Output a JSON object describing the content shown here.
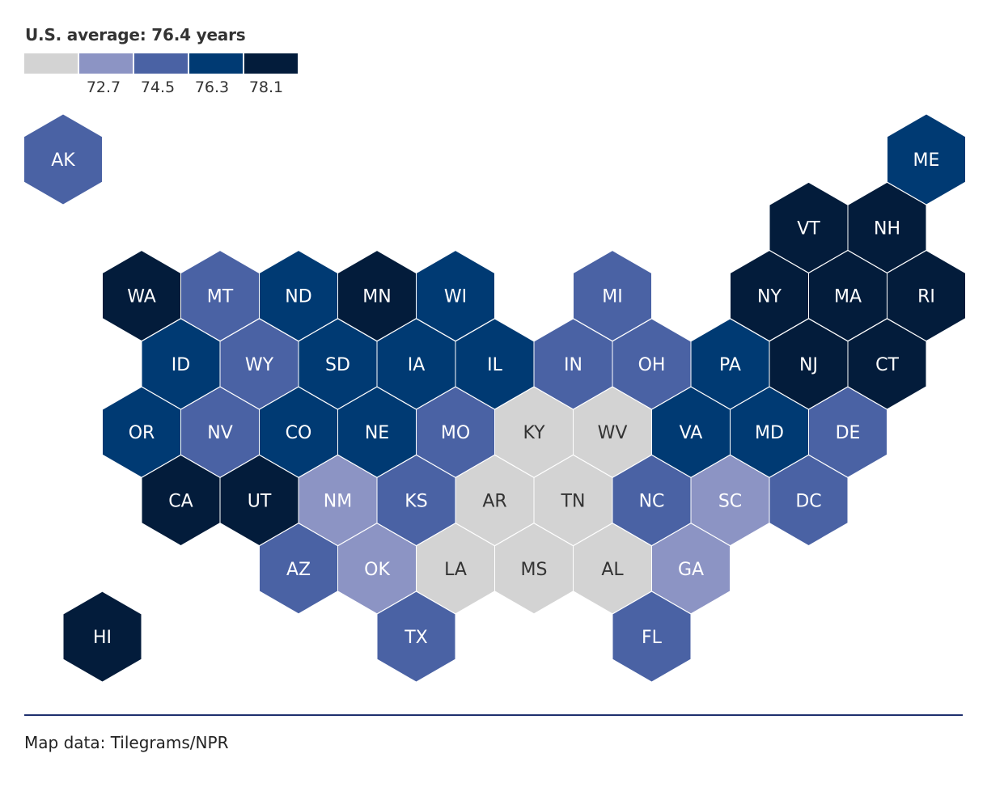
{
  "title": "U.S. average: 76.4 years",
  "legend": {
    "colors": [
      "#d3d3d3",
      "#8c94c4",
      "#4a62a4",
      "#003a73",
      "#031c3b"
    ],
    "breaks": [
      "72.7",
      "74.5",
      "76.3",
      "78.1"
    ]
  },
  "source": "Map data: Tilegrams/NPR",
  "states": [
    {
      "abbr": "AK",
      "bin": 2,
      "row": 0,
      "col": 0
    },
    {
      "abbr": "ME",
      "bin": 3,
      "row": 0,
      "col": 11
    },
    {
      "abbr": "VT",
      "bin": 4,
      "row": 1,
      "col": 9.5
    },
    {
      "abbr": "NH",
      "bin": 4,
      "row": 1,
      "col": 10.5
    },
    {
      "abbr": "WA",
      "bin": 4,
      "row": 2,
      "col": 1
    },
    {
      "abbr": "MT",
      "bin": 2,
      "row": 2,
      "col": 2
    },
    {
      "abbr": "ND",
      "bin": 3,
      "row": 2,
      "col": 3
    },
    {
      "abbr": "MN",
      "bin": 4,
      "row": 2,
      "col": 4
    },
    {
      "abbr": "WI",
      "bin": 3,
      "row": 2,
      "col": 5
    },
    {
      "abbr": "MI",
      "bin": 2,
      "row": 2,
      "col": 7
    },
    {
      "abbr": "NY",
      "bin": 4,
      "row": 2,
      "col": 9
    },
    {
      "abbr": "MA",
      "bin": 4,
      "row": 2,
      "col": 10
    },
    {
      "abbr": "RI",
      "bin": 4,
      "row": 2,
      "col": 11
    },
    {
      "abbr": "ID",
      "bin": 3,
      "row": 3,
      "col": 1.5
    },
    {
      "abbr": "WY",
      "bin": 2,
      "row": 3,
      "col": 2.5
    },
    {
      "abbr": "SD",
      "bin": 3,
      "row": 3,
      "col": 3.5
    },
    {
      "abbr": "IA",
      "bin": 3,
      "row": 3,
      "col": 4.5
    },
    {
      "abbr": "IL",
      "bin": 3,
      "row": 3,
      "col": 5.5
    },
    {
      "abbr": "IN",
      "bin": 2,
      "row": 3,
      "col": 6.5
    },
    {
      "abbr": "OH",
      "bin": 2,
      "row": 3,
      "col": 7.5
    },
    {
      "abbr": "PA",
      "bin": 3,
      "row": 3,
      "col": 8.5
    },
    {
      "abbr": "NJ",
      "bin": 4,
      "row": 3,
      "col": 9.5
    },
    {
      "abbr": "CT",
      "bin": 4,
      "row": 3,
      "col": 10.5
    },
    {
      "abbr": "OR",
      "bin": 3,
      "row": 4,
      "col": 1
    },
    {
      "abbr": "NV",
      "bin": 2,
      "row": 4,
      "col": 2
    },
    {
      "abbr": "CO",
      "bin": 3,
      "row": 4,
      "col": 3
    },
    {
      "abbr": "NE",
      "bin": 3,
      "row": 4,
      "col": 4
    },
    {
      "abbr": "MO",
      "bin": 2,
      "row": 4,
      "col": 5
    },
    {
      "abbr": "KY",
      "bin": 0,
      "row": 4,
      "col": 6
    },
    {
      "abbr": "WV",
      "bin": 0,
      "row": 4,
      "col": 7
    },
    {
      "abbr": "VA",
      "bin": 3,
      "row": 4,
      "col": 8
    },
    {
      "abbr": "MD",
      "bin": 3,
      "row": 4,
      "col": 9
    },
    {
      "abbr": "DE",
      "bin": 2,
      "row": 4,
      "col": 10
    },
    {
      "abbr": "CA",
      "bin": 4,
      "row": 5,
      "col": 1.5
    },
    {
      "abbr": "UT",
      "bin": 4,
      "row": 5,
      "col": 2.5
    },
    {
      "abbr": "NM",
      "bin": 1,
      "row": 5,
      "col": 3.5
    },
    {
      "abbr": "KS",
      "bin": 2,
      "row": 5,
      "col": 4.5
    },
    {
      "abbr": "AR",
      "bin": 0,
      "row": 5,
      "col": 5.5
    },
    {
      "abbr": "TN",
      "bin": 0,
      "row": 5,
      "col": 6.5
    },
    {
      "abbr": "NC",
      "bin": 2,
      "row": 5,
      "col": 7.5
    },
    {
      "abbr": "SC",
      "bin": 1,
      "row": 5,
      "col": 8.5
    },
    {
      "abbr": "DC",
      "bin": 2,
      "row": 5,
      "col": 9.5
    },
    {
      "abbr": "AZ",
      "bin": 2,
      "row": 6,
      "col": 3
    },
    {
      "abbr": "OK",
      "bin": 1,
      "row": 6,
      "col": 4
    },
    {
      "abbr": "LA",
      "bin": 0,
      "row": 6,
      "col": 5
    },
    {
      "abbr": "MS",
      "bin": 0,
      "row": 6,
      "col": 6
    },
    {
      "abbr": "AL",
      "bin": 0,
      "row": 6,
      "col": 7
    },
    {
      "abbr": "GA",
      "bin": 1,
      "row": 6,
      "col": 8
    },
    {
      "abbr": "HI",
      "bin": 4,
      "row": 7,
      "col": 0.5
    },
    {
      "abbr": "TX",
      "bin": 2,
      "row": 7,
      "col": 4.5
    },
    {
      "abbr": "FL",
      "bin": 2,
      "row": 7,
      "col": 7.5
    }
  ]
}
